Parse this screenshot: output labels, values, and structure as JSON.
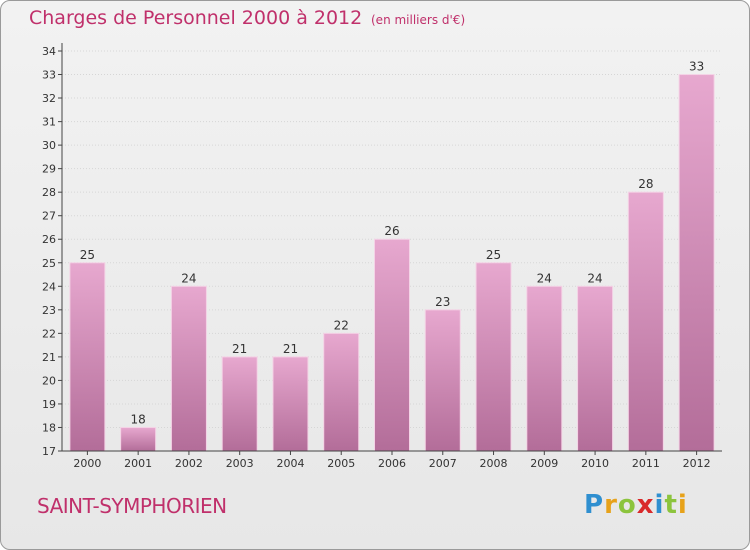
{
  "title": "Charges de Personnel 2000 à 2012",
  "subtitle": "(en milliers d'€)",
  "commune": "SAINT-SYMPHORIEN",
  "logo": {
    "text": "Proxiti",
    "letters": [
      {
        "ch": "P",
        "color": "#2f8fd0"
      },
      {
        "ch": "r",
        "color": "#e7a21a"
      },
      {
        "ch": "o",
        "color": "#8cc43d"
      },
      {
        "ch": "x",
        "color": "#d9292a"
      },
      {
        "ch": "i",
        "color": "#2f8fd0"
      },
      {
        "ch": "t",
        "color": "#8cc43d"
      },
      {
        "ch": "i",
        "color": "#e7a21a"
      }
    ]
  },
  "colors": {
    "bar_top": "#e7a8cf",
    "bar_bottom": "#b36d99",
    "bar_edge": "#f4d3e6",
    "text": "#c0306b",
    "axis": "#444444",
    "grid": "#d6d6d6"
  },
  "chart_data": {
    "type": "bar",
    "categories": [
      "2000",
      "2001",
      "2002",
      "2003",
      "2004",
      "2005",
      "2006",
      "2007",
      "2008",
      "2009",
      "2010",
      "2011",
      "2012"
    ],
    "values": [
      25,
      18,
      24,
      21,
      21,
      22,
      26,
      23,
      25,
      24,
      24,
      28,
      33
    ],
    "data_labels": [
      "25",
      "18",
      "24",
      "21",
      "21",
      "22",
      "26",
      "23",
      "25",
      "24",
      "24",
      "28",
      "33"
    ],
    "ylim": [
      17,
      34
    ],
    "yticks": [
      17,
      18,
      19,
      20,
      21,
      22,
      23,
      24,
      25,
      26,
      27,
      28,
      29,
      30,
      31,
      32,
      33,
      34
    ],
    "grid": true,
    "legend": "none"
  }
}
